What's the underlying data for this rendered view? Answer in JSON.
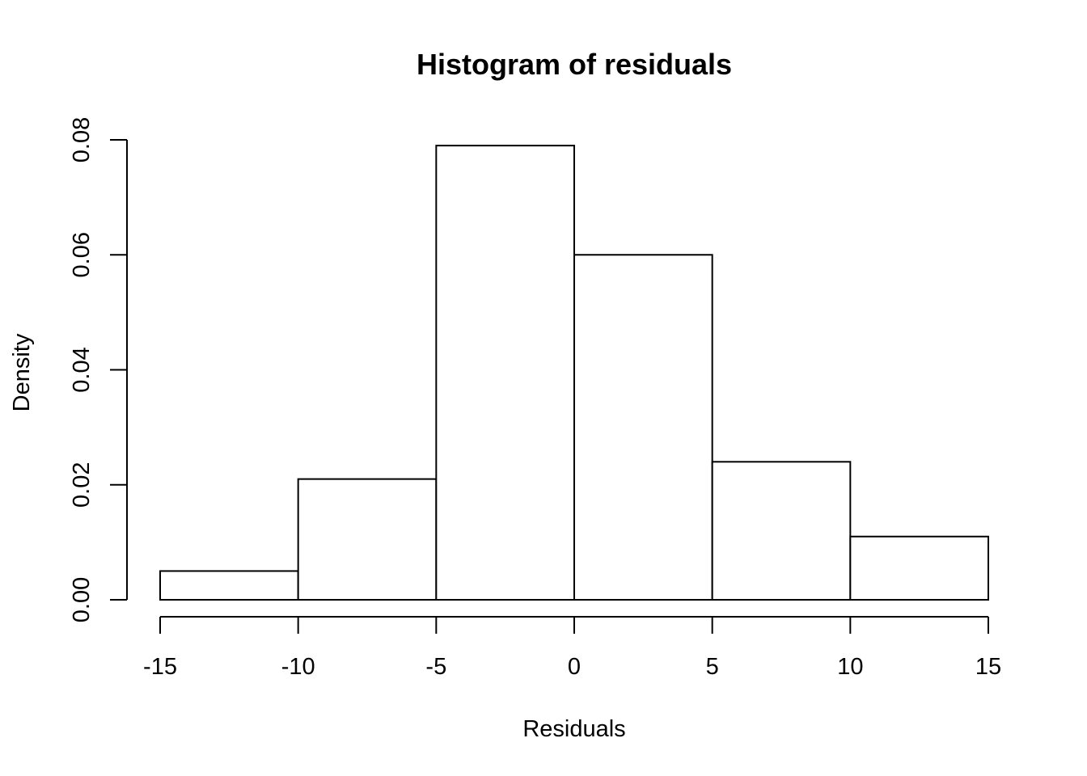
{
  "chart_data": {
    "type": "bar",
    "subtype": "histogram",
    "title": "Histogram of residuals",
    "xlabel": "Residuals",
    "ylabel": "Density",
    "bins": [
      {
        "start": -15,
        "end": -10,
        "density": 0.005
      },
      {
        "start": -10,
        "end": -5,
        "density": 0.021
      },
      {
        "start": -5,
        "end": 0,
        "density": 0.079
      },
      {
        "start": 0,
        "end": 5,
        "density": 0.06
      },
      {
        "start": 5,
        "end": 10,
        "density": 0.024
      },
      {
        "start": 10,
        "end": 15,
        "density": 0.011
      }
    ],
    "xlim": [
      -15,
      15
    ],
    "ylim": [
      0,
      0.08
    ],
    "x_ticks": [
      -15,
      -10,
      -5,
      0,
      5,
      10,
      15
    ],
    "x_tick_labels": [
      "-15",
      "-10",
      "-5",
      "0",
      "5",
      "10",
      "15"
    ],
    "y_ticks": [
      0,
      0.02,
      0.04,
      0.06,
      0.08
    ],
    "y_tick_labels": [
      "0.00",
      "0.02",
      "0.04",
      "0.06",
      "0.08"
    ],
    "fill_color": "#ffffff",
    "stroke_color": "#000000",
    "grid": false,
    "legend": "none"
  }
}
